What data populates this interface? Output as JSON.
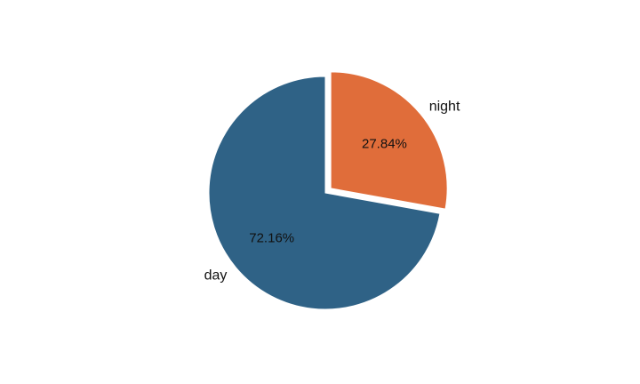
{
  "chart_data": {
    "type": "pie",
    "title": "",
    "labels": [
      "day",
      "night"
    ],
    "values": [
      72.16,
      27.84
    ],
    "value_labels": [
      "72.16%",
      "27.84%"
    ],
    "colors": [
      "#2f6286",
      "#e06d3a"
    ],
    "exploded": [
      "night"
    ],
    "start": "top, clockwise from night"
  }
}
